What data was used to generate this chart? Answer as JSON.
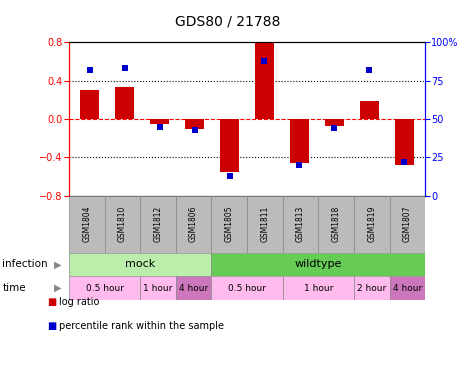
{
  "title": "GDS80 / 21788",
  "samples": [
    "GSM1804",
    "GSM1810",
    "GSM1812",
    "GSM1806",
    "GSM1805",
    "GSM1811",
    "GSM1813",
    "GSM1818",
    "GSM1819",
    "GSM1807"
  ],
  "log_ratio": [
    0.3,
    0.33,
    -0.05,
    -0.1,
    -0.55,
    0.79,
    -0.46,
    -0.07,
    0.19,
    -0.48
  ],
  "percentile": [
    82,
    83,
    45,
    43,
    13,
    88,
    20,
    44,
    82,
    22
  ],
  "bar_color": "#cc0000",
  "dot_color": "#0000cc",
  "ylim_left": [
    -0.8,
    0.8
  ],
  "ylim_right": [
    0,
    100
  ],
  "yticks_left": [
    -0.8,
    -0.4,
    0.0,
    0.4,
    0.8
  ],
  "yticks_right": [
    0,
    25,
    50,
    75,
    100
  ],
  "hlines": [
    0.4,
    0.0,
    -0.4
  ],
  "hline_colors": [
    "black",
    "red",
    "black"
  ],
  "hline_styles": [
    "dotted",
    "dashed",
    "dotted"
  ],
  "infection_groups": [
    {
      "label": "mock",
      "start": 0,
      "end": 4,
      "color": "#bbeeaa"
    },
    {
      "label": "wildtype",
      "start": 4,
      "end": 10,
      "color": "#66cc55"
    }
  ],
  "time_groups": [
    {
      "label": "0.5 hour",
      "start": 0,
      "end": 2,
      "color": "#ffbbee"
    },
    {
      "label": "1 hour",
      "start": 2,
      "end": 3,
      "color": "#ffbbee"
    },
    {
      "label": "4 hour",
      "start": 3,
      "end": 4,
      "color": "#cc77bb"
    },
    {
      "label": "0.5 hour",
      "start": 4,
      "end": 6,
      "color": "#ffbbee"
    },
    {
      "label": "1 hour",
      "start": 6,
      "end": 8,
      "color": "#ffbbee"
    },
    {
      "label": "2 hour",
      "start": 8,
      "end": 9,
      "color": "#ffbbee"
    },
    {
      "label": "4 hour",
      "start": 9,
      "end": 10,
      "color": "#cc77bb"
    }
  ],
  "legend_items": [
    {
      "label": "log ratio",
      "color": "#cc0000"
    },
    {
      "label": "percentile rank within the sample",
      "color": "#0000cc"
    }
  ],
  "bar_width": 0.55,
  "dot_size": 22,
  "label_row_color": "#bbbbbb",
  "infection_arrow_color": "#888888",
  "time_arrow_color": "#888888"
}
